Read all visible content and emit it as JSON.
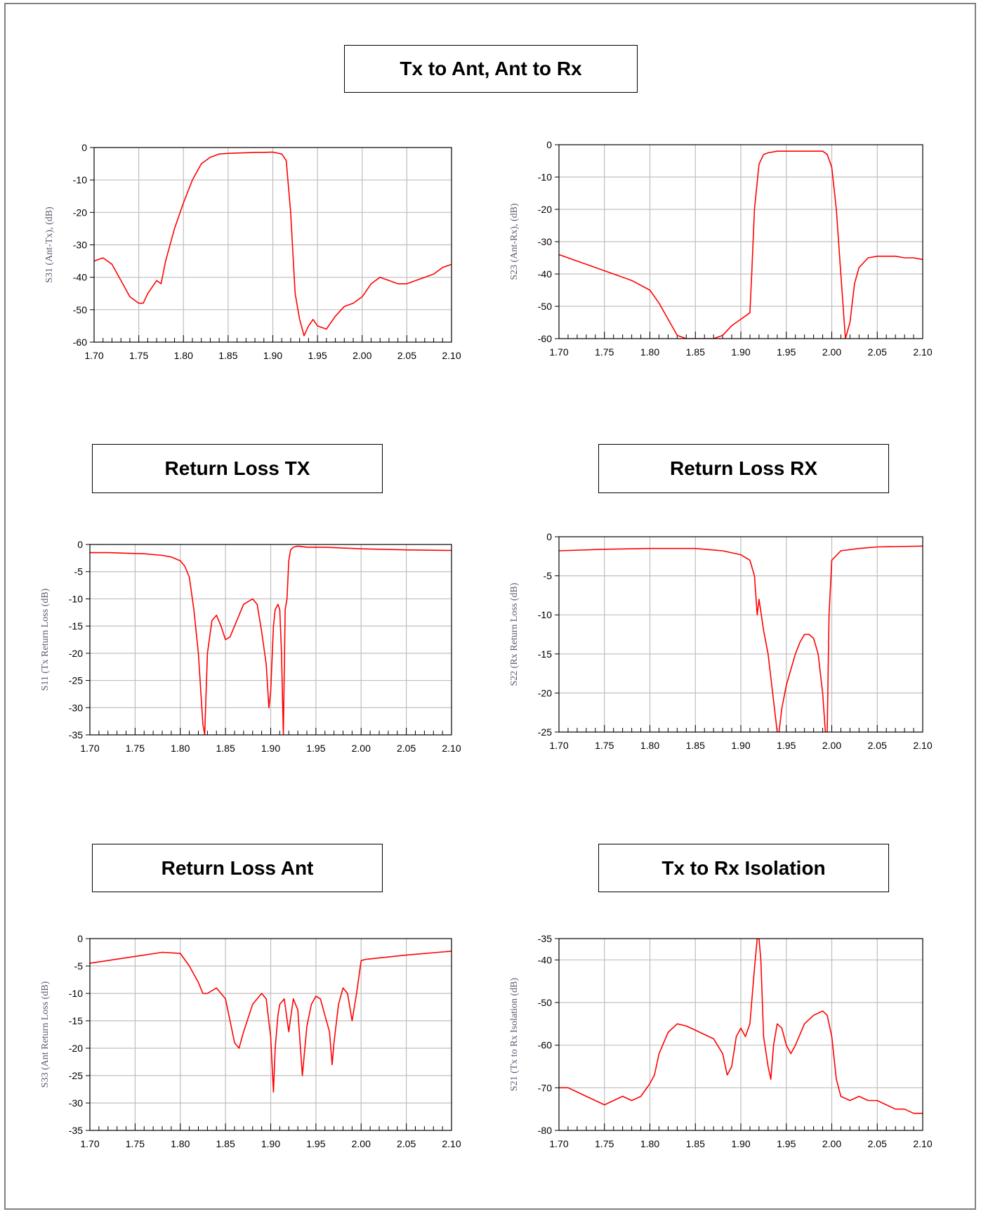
{
  "titles": {
    "top": "Tx to Ant, Ant to Rx",
    "rl_tx": "Return Loss TX",
    "rl_rx": "Return Loss RX",
    "rl_ant": "Return Loss Ant",
    "isolation": "Tx to Rx Isolation"
  },
  "colors": {
    "trace": "#ff0000",
    "grid": "#bfbfbf",
    "axis": "#000000"
  },
  "chart_data": [
    {
      "type": "line",
      "ylabel": "S31 (Ant-Tx), (dB)",
      "xlim": [
        1.7,
        2.1
      ],
      "ylim": [
        -60,
        0
      ],
      "xticks": [
        "1.70",
        "1.75",
        "1.80",
        "1.85",
        "1.90",
        "1.95",
        "2.00",
        "2.05",
        "2.10"
      ],
      "yticks": [
        "0",
        "-10",
        "-20",
        "-30",
        "-40",
        "-50",
        "-60"
      ],
      "grid": true,
      "series": [
        {
          "x": [
            1.7,
            1.71,
            1.72,
            1.73,
            1.74,
            1.75,
            1.755,
            1.76,
            1.77,
            1.775,
            1.78,
            1.79,
            1.8,
            1.81,
            1.82,
            1.83,
            1.84,
            1.85,
            1.86,
            1.87,
            1.88,
            1.89,
            1.9,
            1.91,
            1.915,
            1.92,
            1.925,
            1.93,
            1.935,
            1.94,
            1.945,
            1.95,
            1.96,
            1.97,
            1.98,
            1.99,
            2.0,
            2.01,
            2.02,
            2.03,
            2.04,
            2.05,
            2.06,
            2.07,
            2.08,
            2.09,
            2.1
          ],
          "y": [
            -35,
            -34,
            -36,
            -41,
            -46,
            -48,
            -48,
            -45,
            -41,
            -42,
            -35,
            -25,
            -17,
            -10,
            -5,
            -3,
            -2,
            -1.8,
            -1.7,
            -1.6,
            -1.5,
            -1.5,
            -1.4,
            -2,
            -4,
            -20,
            -45,
            -53,
            -58,
            -55,
            -53,
            -55,
            -56,
            -52,
            -49,
            -48,
            -46,
            -42,
            -40,
            -41,
            -42,
            -42,
            -41,
            -40,
            -39,
            -37,
            -36
          ]
        }
      ]
    },
    {
      "type": "line",
      "ylabel": "S23 (Ant-Rx), (dB)",
      "xlim": [
        1.7,
        2.1
      ],
      "ylim": [
        -60,
        0
      ],
      "xticks": [
        "1.70",
        "1.75",
        "1.80",
        "1.85",
        "1.90",
        "1.95",
        "2.00",
        "2.05",
        "2.10"
      ],
      "yticks": [
        "0",
        "-10",
        "-20",
        "-30",
        "-40",
        "-50",
        "-60"
      ],
      "grid": true,
      "series": [
        {
          "x": [
            1.7,
            1.72,
            1.74,
            1.76,
            1.78,
            1.8,
            1.81,
            1.82,
            1.83,
            1.84,
            1.85,
            1.86,
            1.87,
            1.88,
            1.89,
            1.9,
            1.905,
            1.91,
            1.912,
            1.915,
            1.92,
            1.925,
            1.93,
            1.94,
            1.95,
            1.96,
            1.97,
            1.98,
            1.99,
            1.995,
            2.0,
            2.005,
            2.01,
            2.015,
            2.02,
            2.025,
            2.03,
            2.04,
            2.05,
            2.06,
            2.07,
            2.08,
            2.09,
            2.1
          ],
          "y": [
            -34,
            -36,
            -38,
            -40,
            -42,
            -45,
            -49,
            -54,
            -59,
            -60,
            -60,
            -60,
            -60,
            -59,
            -56,
            -54,
            -53,
            -52,
            -40,
            -20,
            -6,
            -3,
            -2.5,
            -2,
            -2,
            -2,
            -2,
            -2,
            -2,
            -3,
            -7,
            -20,
            -40,
            -60,
            -55,
            -43,
            -38,
            -35,
            -34.5,
            -34.5,
            -34.5,
            -35,
            -35,
            -35.5
          ]
        }
      ]
    },
    {
      "type": "line",
      "ylabel": "S11 (Tx Return Loss (dB)",
      "xlim": [
        1.7,
        2.1
      ],
      "ylim": [
        -35,
        0
      ],
      "xticks": [
        "1.70",
        "1.75",
        "1.80",
        "1.85",
        "1.90",
        "1.95",
        "2.00",
        "2.05",
        "2.10"
      ],
      "yticks": [
        "0",
        "-5",
        "-10",
        "-15",
        "-20",
        "-25",
        "-30",
        "-35"
      ],
      "grid": true,
      "series": [
        {
          "x": [
            1.7,
            1.72,
            1.74,
            1.76,
            1.78,
            1.79,
            1.8,
            1.805,
            1.81,
            1.815,
            1.82,
            1.825,
            1.827,
            1.83,
            1.835,
            1.84,
            1.845,
            1.85,
            1.855,
            1.86,
            1.87,
            1.88,
            1.885,
            1.89,
            1.895,
            1.898,
            1.9,
            1.903,
            1.905,
            1.908,
            1.91,
            1.912,
            1.914,
            1.916,
            1.918,
            1.92,
            1.922,
            1.925,
            1.93,
            1.94,
            1.96,
            2.0,
            2.05,
            2.1
          ],
          "y": [
            -1.5,
            -1.5,
            -1.6,
            -1.7,
            -2,
            -2.3,
            -3,
            -4,
            -6,
            -12,
            -20,
            -33,
            -35,
            -20,
            -14,
            -13,
            -15,
            -17.5,
            -17,
            -15,
            -11,
            -10,
            -11,
            -16,
            -22,
            -30,
            -27,
            -15,
            -12,
            -11,
            -12,
            -20,
            -35,
            -12,
            -10,
            -3,
            -1,
            -0.5,
            -0.3,
            -0.5,
            -0.5,
            -0.8,
            -1.0,
            -1.1
          ]
        }
      ]
    },
    {
      "type": "line",
      "ylabel": "S22 (Rx Return Loss (dB)",
      "xlim": [
        1.7,
        2.1
      ],
      "ylim": [
        -25,
        0
      ],
      "xticks": [
        "1.70",
        "1.75",
        "1.80",
        "1.85",
        "1.90",
        "1.95",
        "2.00",
        "2.05",
        "2.10"
      ],
      "yticks": [
        "0",
        "-5",
        "-10",
        "-15",
        "-20",
        "-25"
      ],
      "grid": true,
      "series": [
        {
          "x": [
            1.7,
            1.75,
            1.8,
            1.85,
            1.88,
            1.9,
            1.91,
            1.915,
            1.918,
            1.92,
            1.925,
            1.93,
            1.935,
            1.94,
            1.942,
            1.945,
            1.95,
            1.955,
            1.96,
            1.965,
            1.97,
            1.975,
            1.98,
            1.985,
            1.99,
            1.993,
            1.995,
            1.997,
            2.0,
            2.01,
            2.03,
            2.05,
            2.1
          ],
          "y": [
            -1.8,
            -1.6,
            -1.5,
            -1.5,
            -1.8,
            -2.3,
            -3,
            -5,
            -10,
            -8,
            -12,
            -15,
            -20,
            -25,
            -25,
            -22,
            -19,
            -17,
            -15,
            -13.5,
            -12.5,
            -12.5,
            -13,
            -15,
            -20,
            -25,
            -25,
            -10,
            -3,
            -1.8,
            -1.5,
            -1.3,
            -1.2
          ]
        }
      ]
    },
    {
      "type": "line",
      "ylabel": "S33 (Ant Return Loss (dB)",
      "xlim": [
        1.7,
        2.1
      ],
      "ylim": [
        -35,
        0
      ],
      "xticks": [
        "1.70",
        "1.75",
        "1.80",
        "1.85",
        "1.90",
        "1.95",
        "2.00",
        "2.05",
        "2.10"
      ],
      "yticks": [
        "0",
        "-5",
        "-10",
        "-15",
        "-20",
        "-25",
        "-30",
        "-35"
      ],
      "grid": true,
      "series": [
        {
          "x": [
            1.7,
            1.72,
            1.74,
            1.76,
            1.78,
            1.8,
            1.81,
            1.82,
            1.825,
            1.83,
            1.84,
            1.85,
            1.855,
            1.86,
            1.865,
            1.87,
            1.88,
            1.89,
            1.895,
            1.9,
            1.903,
            1.905,
            1.908,
            1.91,
            1.915,
            1.92,
            1.925,
            1.93,
            1.935,
            1.94,
            1.945,
            1.95,
            1.955,
            1.96,
            1.965,
            1.968,
            1.97,
            1.975,
            1.98,
            1.985,
            1.99,
            1.995,
            2.0,
            2.005,
            2.05,
            2.1
          ],
          "y": [
            -4.5,
            -4,
            -3.5,
            -3,
            -2.5,
            -2.7,
            -5,
            -8,
            -10,
            -10,
            -9,
            -11,
            -15,
            -19,
            -20,
            -17,
            -12,
            -10,
            -11,
            -18,
            -28,
            -20,
            -14,
            -12,
            -11,
            -17,
            -11,
            -13,
            -25,
            -16,
            -12,
            -10.5,
            -11,
            -14,
            -17,
            -23,
            -19,
            -12,
            -9,
            -10,
            -15,
            -10,
            -4,
            -3.8,
            -3,
            -2.3
          ]
        }
      ]
    },
    {
      "type": "line",
      "ylabel": "S21 (Tx to Rx Isolation  (dB)",
      "xlim": [
        1.7,
        2.1
      ],
      "ylim": [
        -80,
        -35
      ],
      "xticks": [
        "1.70",
        "1.75",
        "1.80",
        "1.85",
        "1.90",
        "1.95",
        "2.00",
        "2.05",
        "2.10"
      ],
      "yticks": [
        "-35",
        "-40",
        "-50",
        "-60",
        "-70",
        "-80"
      ],
      "grid": true,
      "series": [
        {
          "x": [
            1.7,
            1.71,
            1.72,
            1.73,
            1.74,
            1.75,
            1.76,
            1.77,
            1.78,
            1.79,
            1.8,
            1.805,
            1.81,
            1.82,
            1.83,
            1.84,
            1.85,
            1.86,
            1.87,
            1.88,
            1.885,
            1.89,
            1.895,
            1.9,
            1.905,
            1.91,
            1.915,
            1.918,
            1.92,
            1.922,
            1.925,
            1.93,
            1.933,
            1.936,
            1.94,
            1.945,
            1.95,
            1.955,
            1.96,
            1.97,
            1.98,
            1.99,
            1.995,
            2.0,
            2.005,
            2.01,
            2.02,
            2.03,
            2.04,
            2.05,
            2.06,
            2.07,
            2.08,
            2.09,
            2.1
          ],
          "y": [
            -70,
            -70,
            -71,
            -72,
            -73,
            -74,
            -73,
            -72,
            -73,
            -72,
            -69,
            -67,
            -62,
            -57,
            -55,
            -55.5,
            -56.5,
            -57.5,
            -58.5,
            -62,
            -67,
            -65,
            -58,
            -56,
            -58,
            -55,
            -42,
            -35,
            -35,
            -40,
            -58,
            -65,
            -68,
            -60,
            -55,
            -56,
            -60,
            -62,
            -60,
            -55,
            -53,
            -52,
            -53,
            -58,
            -68,
            -72,
            -73,
            -72,
            -73,
            -73,
            -74,
            -75,
            -75,
            -76,
            -76
          ]
        }
      ]
    }
  ]
}
